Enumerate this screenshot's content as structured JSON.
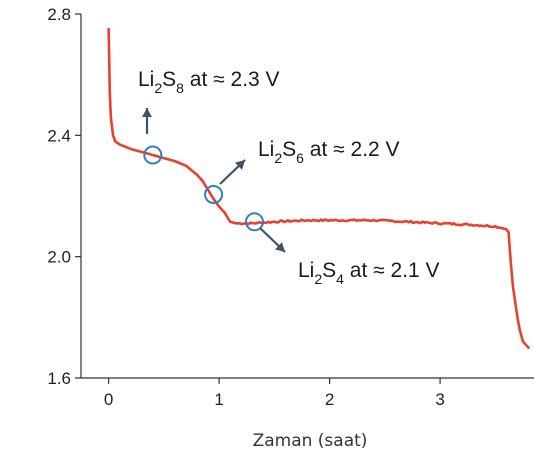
{
  "chart_data": {
    "type": "line",
    "title": "",
    "xlabel": "Zaman (saat)",
    "ylabel": "",
    "xlim": [
      -0.25,
      3.85
    ],
    "ylim": [
      1.6,
      2.8
    ],
    "xticks": [
      0,
      1,
      2,
      3
    ],
    "xtick_labels": [
      "0",
      "1",
      "2",
      "3"
    ],
    "yticks": [
      1.6,
      2.0,
      2.4,
      2.8
    ],
    "ytick_labels": [
      "1.6",
      "2.0",
      "2.4",
      "2.8"
    ],
    "grid": false,
    "colors": {
      "series": "#e8412c",
      "marker": "#2f7fc1",
      "arrow": "#3f5266"
    },
    "series": [
      {
        "x": [
          0.0,
          0.005,
          0.01,
          0.02,
          0.04,
          0.06,
          0.1,
          0.2,
          0.3,
          0.4,
          0.5,
          0.6,
          0.7,
          0.75,
          0.8,
          0.85,
          0.9,
          0.95,
          1.0,
          1.05,
          1.1,
          1.15,
          1.2,
          1.3,
          1.5,
          1.8,
          2.1,
          2.4,
          2.7,
          3.0,
          3.3,
          3.5,
          3.6,
          3.62,
          3.64,
          3.66,
          3.68,
          3.7,
          3.72,
          3.75,
          3.8
        ],
        "y": [
          2.75,
          2.66,
          2.55,
          2.46,
          2.4,
          2.38,
          2.37,
          2.355,
          2.345,
          2.335,
          2.325,
          2.315,
          2.3,
          2.285,
          2.27,
          2.25,
          2.22,
          2.19,
          2.165,
          2.145,
          2.115,
          2.11,
          2.11,
          2.11,
          2.115,
          2.12,
          2.12,
          2.12,
          2.115,
          2.11,
          2.105,
          2.1,
          2.09,
          2.08,
          1.98,
          1.9,
          1.85,
          1.8,
          1.76,
          1.72,
          1.7
        ]
      }
    ],
    "annotations": [
      {
        "species": "Li",
        "sub1": "2",
        "anion": "S",
        "sub2": "8",
        "text": " at ≈ 2.3 V",
        "x": 0.4,
        "y": 2.335
      },
      {
        "species": "Li",
        "sub1": "2",
        "anion": "S",
        "sub2": "6",
        "text": " at ≈ 2.2 V",
        "x": 0.95,
        "y": 2.205
      },
      {
        "species": "Li",
        "sub1": "2",
        "anion": "S",
        "sub2": "4",
        "text": " at ≈ 2.1 V",
        "x": 1.32,
        "y": 2.115
      }
    ]
  }
}
